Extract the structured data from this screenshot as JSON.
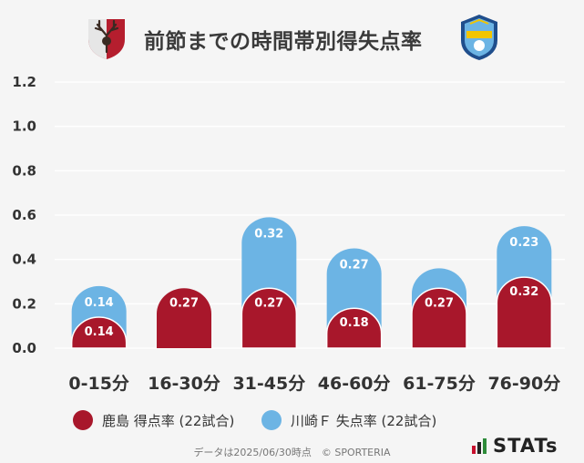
{
  "header": {
    "title": "前節までの時間帯別得失点率",
    "left_emblem": "kashima-antlers-emblem",
    "right_emblem": "kawasaki-frontale-emblem"
  },
  "colors": {
    "background": "#f5f5f5",
    "kashima": "#a8172b",
    "kawasaki": "#6cb4e4",
    "grid": "#ffffff"
  },
  "legend": {
    "kashima_label": "鹿島 得点率 (22試合)",
    "kawasaki_label": "川崎Ｆ 失点率 (22試合)"
  },
  "footer": {
    "source": "データは2025/06/30時点　© SPORTERIA",
    "brand": "STATs"
  },
  "chart_data": {
    "type": "bar",
    "categories": [
      "0-15分",
      "16-30分",
      "31-45分",
      "46-60分",
      "61-75分",
      "76-90分"
    ],
    "series": [
      {
        "name": "鹿島 得点率 (22試合)",
        "values": [
          0.14,
          0.27,
          0.27,
          0.18,
          0.27,
          0.32
        ],
        "color": "#a8172b"
      },
      {
        "name": "川崎Ｆ 失点率 (22試合)",
        "values": [
          0.14,
          0.0,
          0.32,
          0.27,
          0.09,
          0.23
        ],
        "color": "#6cb4e4"
      }
    ],
    "labels": {
      "kashima": [
        "0.14",
        "0.27",
        "0.27",
        "0.18",
        "0.27",
        "0.32"
      ],
      "kawasaki": [
        "0.14",
        "",
        "0.32",
        "0.27",
        "",
        "0.23"
      ]
    },
    "yticks": [
      "0.0",
      "0.2",
      "0.4",
      "0.6",
      "0.8",
      "1.0",
      "1.2"
    ],
    "ylim": [
      0,
      1.2
    ],
    "stacked": true,
    "grid": true,
    "legend_position": "bottom"
  }
}
